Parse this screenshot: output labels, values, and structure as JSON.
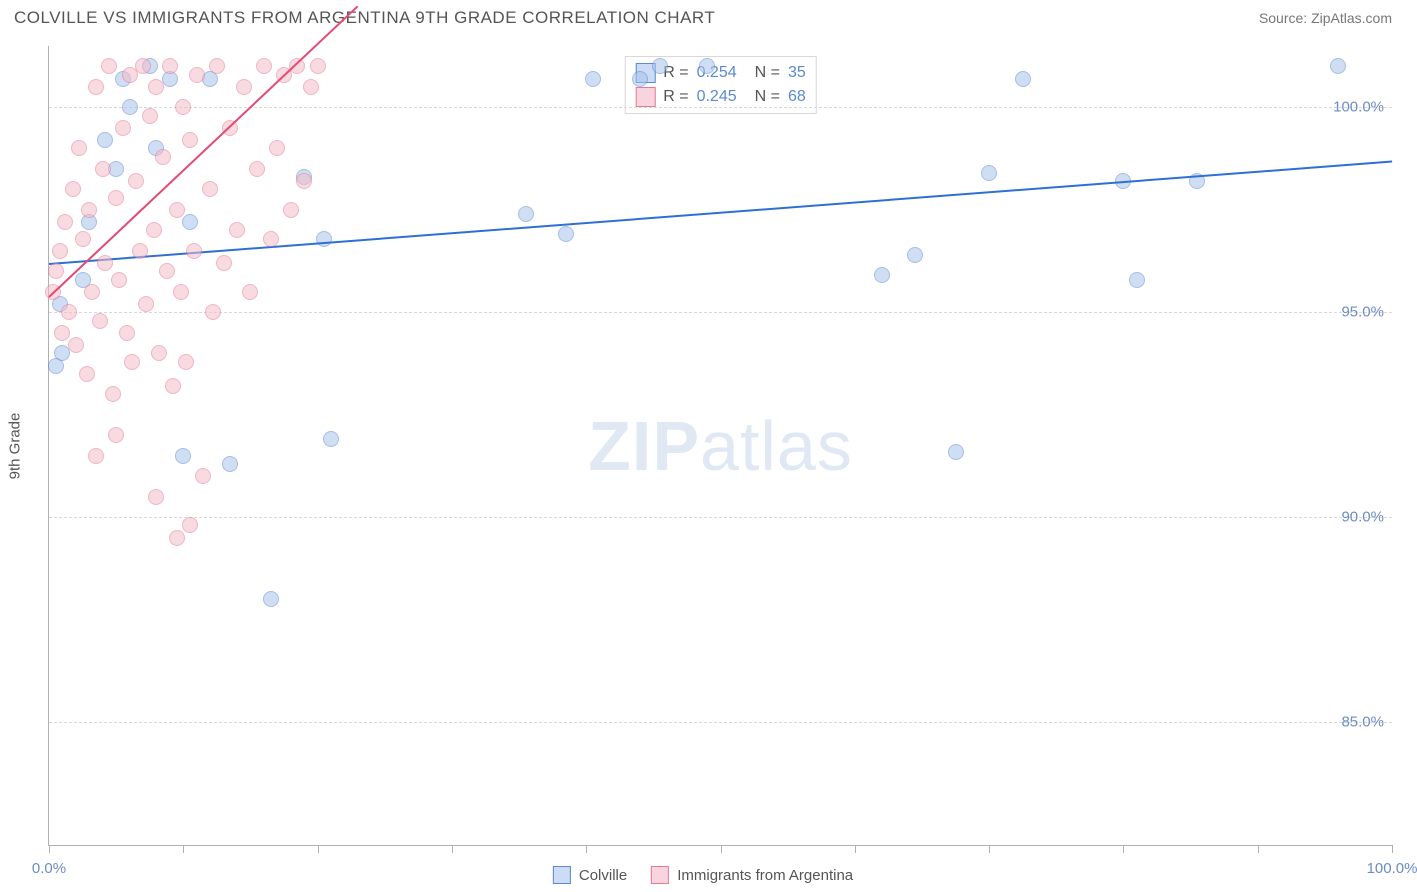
{
  "header": {
    "title": "COLVILLE VS IMMIGRANTS FROM ARGENTINA 9TH GRADE CORRELATION CHART",
    "source": "Source: ZipAtlas.com"
  },
  "watermark": {
    "left": "ZIP",
    "right": "atlas"
  },
  "chart": {
    "type": "scatter",
    "y_axis_title": "9th Grade",
    "xlim": [
      0,
      100
    ],
    "ylim": [
      82,
      101.5
    ],
    "x_ticks": [
      0,
      10,
      20,
      30,
      40,
      50,
      60,
      70,
      80,
      90,
      100
    ],
    "x_tick_labels": {
      "0": "0.0%",
      "100": "100.0%"
    },
    "y_gridlines": [
      85,
      90,
      95,
      100
    ],
    "y_tick_labels": {
      "85": "85.0%",
      "90": "90.0%",
      "95": "95.0%",
      "100": "100.0%"
    },
    "background_color": "#ffffff",
    "grid_color": "#d8d8d8",
    "axis_color": "#b0b0b0",
    "marker_radius": 8,
    "marker_opacity": 0.55,
    "series": [
      {
        "name": "Colville",
        "color_fill": "#a8c4ea",
        "color_stroke": "#5a8ad4",
        "swatch_fill": "#cbdcf4",
        "R": "0.254",
        "N": "35",
        "trend": {
          "x1": 0,
          "y1": 96.2,
          "x2": 100,
          "y2": 98.7,
          "color": "#2e6fd4",
          "width": 2
        },
        "points": [
          [
            0.5,
            93.7
          ],
          [
            1.0,
            94.0
          ],
          [
            0.8,
            95.2
          ],
          [
            2.5,
            95.8
          ],
          [
            3.0,
            97.2
          ],
          [
            4.2,
            99.2
          ],
          [
            5.0,
            98.5
          ],
          [
            5.5,
            100.7
          ],
          [
            6.0,
            100.0
          ],
          [
            7.5,
            101.0
          ],
          [
            8.0,
            99.0
          ],
          [
            9.0,
            100.7
          ],
          [
            10.5,
            97.2
          ],
          [
            12.0,
            100.7
          ],
          [
            13.5,
            91.3
          ],
          [
            19.0,
            98.3
          ],
          [
            20.5,
            96.8
          ],
          [
            21.0,
            91.9
          ],
          [
            35.5,
            97.4
          ],
          [
            38.5,
            96.9
          ],
          [
            40.5,
            100.7
          ],
          [
            44.0,
            100.7
          ],
          [
            45.5,
            101.0
          ],
          [
            49.0,
            101.0
          ],
          [
            62.0,
            95.9
          ],
          [
            64.5,
            96.4
          ],
          [
            67.5,
            91.6
          ],
          [
            70.0,
            98.4
          ],
          [
            72.5,
            100.7
          ],
          [
            80.0,
            98.2
          ],
          [
            81.0,
            95.8
          ],
          [
            85.5,
            98.2
          ],
          [
            96.0,
            101.0
          ],
          [
            16.5,
            88.0
          ],
          [
            10.0,
            91.5
          ]
        ]
      },
      {
        "name": "Immigrants from Argentina",
        "color_fill": "#f4bcc9",
        "color_stroke": "#e67a96",
        "swatch_fill": "#f7d4de",
        "R": "0.245",
        "N": "68",
        "trend": {
          "x1": 0,
          "y1": 95.4,
          "x2": 23,
          "y2": 102.5,
          "color": "#e24a72",
          "width": 2
        },
        "points": [
          [
            0.3,
            95.5
          ],
          [
            0.5,
            96.0
          ],
          [
            0.8,
            96.5
          ],
          [
            1.0,
            94.5
          ],
          [
            1.2,
            97.2
          ],
          [
            1.5,
            95.0
          ],
          [
            1.8,
            98.0
          ],
          [
            2.0,
            94.2
          ],
          [
            2.2,
            99.0
          ],
          [
            2.5,
            96.8
          ],
          [
            2.8,
            93.5
          ],
          [
            3.0,
            97.5
          ],
          [
            3.2,
            95.5
          ],
          [
            3.5,
            100.5
          ],
          [
            3.8,
            94.8
          ],
          [
            4.0,
            98.5
          ],
          [
            4.2,
            96.2
          ],
          [
            4.5,
            101.0
          ],
          [
            4.8,
            93.0
          ],
          [
            5.0,
            97.8
          ],
          [
            5.2,
            95.8
          ],
          [
            5.5,
            99.5
          ],
          [
            5.8,
            94.5
          ],
          [
            6.0,
            100.8
          ],
          [
            6.2,
            93.8
          ],
          [
            6.5,
            98.2
          ],
          [
            6.8,
            96.5
          ],
          [
            7.0,
            101.0
          ],
          [
            7.2,
            95.2
          ],
          [
            7.5,
            99.8
          ],
          [
            7.8,
            97.0
          ],
          [
            8.0,
            100.5
          ],
          [
            8.2,
            94.0
          ],
          [
            8.5,
            98.8
          ],
          [
            8.8,
            96.0
          ],
          [
            9.0,
            101.0
          ],
          [
            9.2,
            93.2
          ],
          [
            9.5,
            97.5
          ],
          [
            9.8,
            95.5
          ],
          [
            10.0,
            100.0
          ],
          [
            10.2,
            93.8
          ],
          [
            10.5,
            99.2
          ],
          [
            10.8,
            96.5
          ],
          [
            11.0,
            100.8
          ],
          [
            11.5,
            91.0
          ],
          [
            12.0,
            98.0
          ],
          [
            12.2,
            95.0
          ],
          [
            12.5,
            101.0
          ],
          [
            13.0,
            96.2
          ],
          [
            13.5,
            99.5
          ],
          [
            14.0,
            97.0
          ],
          [
            14.5,
            100.5
          ],
          [
            15.0,
            95.5
          ],
          [
            15.5,
            98.5
          ],
          [
            16.0,
            101.0
          ],
          [
            16.5,
            96.8
          ],
          [
            17.0,
            99.0
          ],
          [
            17.5,
            100.8
          ],
          [
            18.0,
            97.5
          ],
          [
            18.5,
            101.0
          ],
          [
            19.0,
            98.2
          ],
          [
            19.5,
            100.5
          ],
          [
            20.0,
            101.0
          ],
          [
            3.5,
            91.5
          ],
          [
            5.0,
            92.0
          ],
          [
            8.0,
            90.5
          ],
          [
            9.5,
            89.5
          ],
          [
            10.5,
            89.8
          ]
        ]
      }
    ]
  },
  "legend_bottom": [
    {
      "label": "Colville",
      "fill": "#cbdcf4",
      "stroke": "#5a8ad4"
    },
    {
      "label": "Immigrants from Argentina",
      "fill": "#f7d4de",
      "stroke": "#e67a96"
    }
  ]
}
